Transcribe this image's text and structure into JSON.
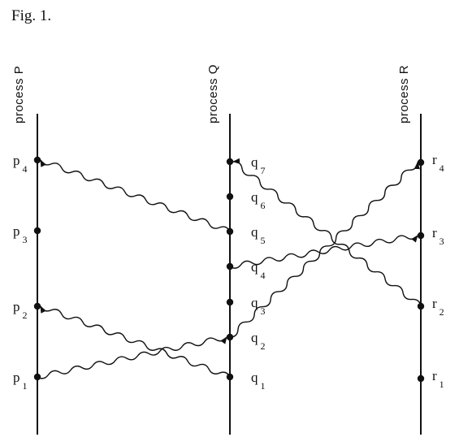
{
  "figure_label": "Fig. 1.",
  "processes": [
    {
      "id": "P",
      "label": "process P"
    },
    {
      "id": "Q",
      "label": "process Q"
    },
    {
      "id": "R",
      "label": "process R"
    }
  ],
  "events": [
    {
      "id": "p1",
      "process": "P",
      "base": "p",
      "sub": "1"
    },
    {
      "id": "p2",
      "process": "P",
      "base": "p",
      "sub": "2"
    },
    {
      "id": "p3",
      "process": "P",
      "base": "p",
      "sub": "3"
    },
    {
      "id": "p4",
      "process": "P",
      "base": "p",
      "sub": "4"
    },
    {
      "id": "q1",
      "process": "Q",
      "base": "q",
      "sub": "1"
    },
    {
      "id": "q2",
      "process": "Q",
      "base": "q",
      "sub": "2"
    },
    {
      "id": "q3",
      "process": "Q",
      "base": "q",
      "sub": "3"
    },
    {
      "id": "q4",
      "process": "Q",
      "base": "q",
      "sub": "4"
    },
    {
      "id": "q5",
      "process": "Q",
      "base": "q",
      "sub": "5"
    },
    {
      "id": "q6",
      "process": "Q",
      "base": "q",
      "sub": "6"
    },
    {
      "id": "q7",
      "process": "Q",
      "base": "q",
      "sub": "7"
    },
    {
      "id": "r1",
      "process": "R",
      "base": "r",
      "sub": "1"
    },
    {
      "id": "r2",
      "process": "R",
      "base": "r",
      "sub": "2"
    },
    {
      "id": "r3",
      "process": "R",
      "base": "r",
      "sub": "3"
    },
    {
      "id": "r4",
      "process": "R",
      "base": "r",
      "sub": "4"
    }
  ],
  "messages": [
    {
      "from": "p1",
      "to": "q2"
    },
    {
      "from": "q1",
      "to": "p2"
    },
    {
      "from": "q2",
      "to": "r4"
    },
    {
      "from": "q4",
      "to": "r3"
    },
    {
      "from": "q5",
      "to": "p4"
    },
    {
      "from": "r2",
      "to": "q7"
    }
  ]
}
